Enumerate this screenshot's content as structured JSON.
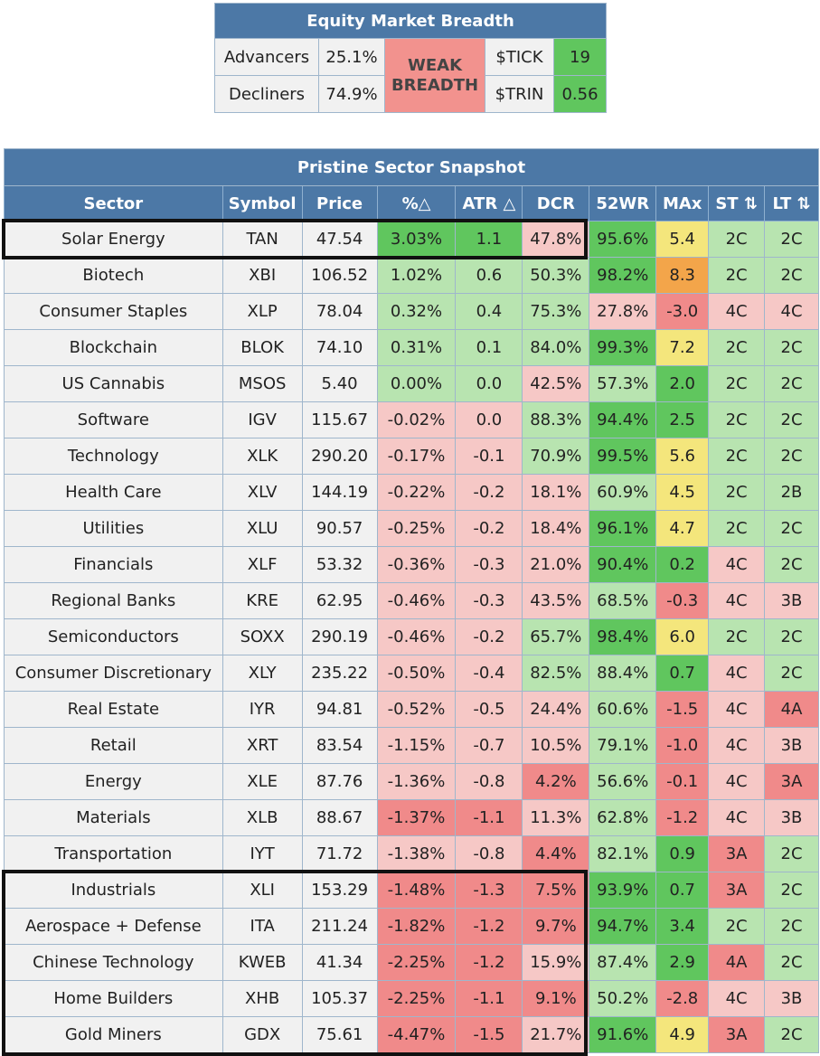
{
  "breadth": {
    "title": "Equity Market Breadth",
    "advancers_label": "Advancers",
    "advancers_value": "25.1%",
    "decliners_label": "Decliners",
    "decliners_value": "74.9%",
    "signal_line1": "WEAK",
    "signal_line2": "BREADTH",
    "tick_label": "$TICK",
    "tick_value": "19",
    "trin_label": "$TRIN",
    "trin_value": "0.56"
  },
  "snapshot": {
    "title": "Pristine Sector Snapshot",
    "columns": [
      "Sector",
      "Symbol",
      "Price",
      "%△",
      "ATR △",
      "DCR",
      "52WR",
      "MAx",
      "ST ⇅",
      "LT ⇅"
    ],
    "colors": {
      "green_dark": "#60c65e",
      "green_light": "#b8e4b0",
      "red_dark": "#f08a8a",
      "red_light": "#f6c8c6",
      "yellow": "#f4e67c",
      "orange": "#f3a54a",
      "grey": "#f1f1f1"
    },
    "rows": [
      {
        "sector": "Solar Energy",
        "symbol": "TAN",
        "price": "47.54",
        "pct": "3.03%",
        "pct_c": "green_dark",
        "atr": "1.1",
        "atr_c": "green_dark",
        "dcr": "47.8%",
        "dcr_c": "red_light",
        "wr": "95.6%",
        "wr_c": "green_dark",
        "max": "5.4",
        "max_c": "yellow",
        "st": "2C",
        "st_c": "green_light",
        "lt": "2C",
        "lt_c": "green_light"
      },
      {
        "sector": "Biotech",
        "symbol": "XBI",
        "price": "106.52",
        "pct": "1.02%",
        "pct_c": "green_light",
        "atr": "0.6",
        "atr_c": "green_light",
        "dcr": "50.3%",
        "dcr_c": "green_light",
        "wr": "98.2%",
        "wr_c": "green_dark",
        "max": "8.3",
        "max_c": "orange",
        "st": "2C",
        "st_c": "green_light",
        "lt": "2C",
        "lt_c": "green_light"
      },
      {
        "sector": "Consumer Staples",
        "symbol": "XLP",
        "price": "78.04",
        "pct": "0.32%",
        "pct_c": "green_light",
        "atr": "0.4",
        "atr_c": "green_light",
        "dcr": "75.3%",
        "dcr_c": "green_light",
        "wr": "27.8%",
        "wr_c": "red_light",
        "max": "-3.0",
        "max_c": "red_dark",
        "st": "4C",
        "st_c": "red_light",
        "lt": "4C",
        "lt_c": "red_light"
      },
      {
        "sector": "Blockchain",
        "symbol": "BLOK",
        "price": "74.10",
        "pct": "0.31%",
        "pct_c": "green_light",
        "atr": "0.1",
        "atr_c": "green_light",
        "dcr": "84.0%",
        "dcr_c": "green_light",
        "wr": "99.3%",
        "wr_c": "green_dark",
        "max": "7.2",
        "max_c": "yellow",
        "st": "2C",
        "st_c": "green_light",
        "lt": "2C",
        "lt_c": "green_light"
      },
      {
        "sector": "US Cannabis",
        "symbol": "MSOS",
        "price": "5.40",
        "pct": "0.00%",
        "pct_c": "green_light",
        "atr": "0.0",
        "atr_c": "green_light",
        "dcr": "42.5%",
        "dcr_c": "red_light",
        "wr": "57.3%",
        "wr_c": "green_light",
        "max": "2.0",
        "max_c": "green_dark",
        "st": "2C",
        "st_c": "green_light",
        "lt": "2C",
        "lt_c": "green_light"
      },
      {
        "sector": "Software",
        "symbol": "IGV",
        "price": "115.67",
        "pct": "-0.02%",
        "pct_c": "red_light",
        "atr": "0.0",
        "atr_c": "red_light",
        "dcr": "88.3%",
        "dcr_c": "green_light",
        "wr": "94.4%",
        "wr_c": "green_dark",
        "max": "2.5",
        "max_c": "green_dark",
        "st": "2C",
        "st_c": "green_light",
        "lt": "2C",
        "lt_c": "green_light"
      },
      {
        "sector": "Technology",
        "symbol": "XLK",
        "price": "290.20",
        "pct": "-0.17%",
        "pct_c": "red_light",
        "atr": "-0.1",
        "atr_c": "red_light",
        "dcr": "70.9%",
        "dcr_c": "green_light",
        "wr": "99.5%",
        "wr_c": "green_dark",
        "max": "5.6",
        "max_c": "yellow",
        "st": "2C",
        "st_c": "green_light",
        "lt": "2C",
        "lt_c": "green_light"
      },
      {
        "sector": "Health Care",
        "symbol": "XLV",
        "price": "144.19",
        "pct": "-0.22%",
        "pct_c": "red_light",
        "atr": "-0.2",
        "atr_c": "red_light",
        "dcr": "18.1%",
        "dcr_c": "red_light",
        "wr": "60.9%",
        "wr_c": "green_light",
        "max": "4.5",
        "max_c": "yellow",
        "st": "2C",
        "st_c": "green_light",
        "lt": "2B",
        "lt_c": "green_light"
      },
      {
        "sector": "Utilities",
        "symbol": "XLU",
        "price": "90.57",
        "pct": "-0.25%",
        "pct_c": "red_light",
        "atr": "-0.2",
        "atr_c": "red_light",
        "dcr": "18.4%",
        "dcr_c": "red_light",
        "wr": "96.1%",
        "wr_c": "green_dark",
        "max": "4.7",
        "max_c": "yellow",
        "st": "2C",
        "st_c": "green_light",
        "lt": "2C",
        "lt_c": "green_light"
      },
      {
        "sector": "Financials",
        "symbol": "XLF",
        "price": "53.32",
        "pct": "-0.36%",
        "pct_c": "red_light",
        "atr": "-0.3",
        "atr_c": "red_light",
        "dcr": "21.0%",
        "dcr_c": "red_light",
        "wr": "90.4%",
        "wr_c": "green_dark",
        "max": "0.2",
        "max_c": "green_dark",
        "st": "4C",
        "st_c": "red_light",
        "lt": "2C",
        "lt_c": "green_light"
      },
      {
        "sector": "Regional Banks",
        "symbol": "KRE",
        "price": "62.95",
        "pct": "-0.46%",
        "pct_c": "red_light",
        "atr": "-0.3",
        "atr_c": "red_light",
        "dcr": "43.5%",
        "dcr_c": "red_light",
        "wr": "68.5%",
        "wr_c": "green_light",
        "max": "-0.3",
        "max_c": "red_dark",
        "st": "4C",
        "st_c": "red_light",
        "lt": "3B",
        "lt_c": "red_light"
      },
      {
        "sector": "Semiconductors",
        "symbol": "SOXX",
        "price": "290.19",
        "pct": "-0.46%",
        "pct_c": "red_light",
        "atr": "-0.2",
        "atr_c": "red_light",
        "dcr": "65.7%",
        "dcr_c": "green_light",
        "wr": "98.4%",
        "wr_c": "green_dark",
        "max": "6.0",
        "max_c": "yellow",
        "st": "2C",
        "st_c": "green_light",
        "lt": "2C",
        "lt_c": "green_light"
      },
      {
        "sector": "Consumer Discretionary",
        "symbol": "XLY",
        "price": "235.22",
        "pct": "-0.50%",
        "pct_c": "red_light",
        "atr": "-0.4",
        "atr_c": "red_light",
        "dcr": "82.5%",
        "dcr_c": "green_light",
        "wr": "88.4%",
        "wr_c": "green_light",
        "max": "0.7",
        "max_c": "green_dark",
        "st": "4C",
        "st_c": "red_light",
        "lt": "2C",
        "lt_c": "green_light"
      },
      {
        "sector": "Real Estate",
        "symbol": "IYR",
        "price": "94.81",
        "pct": "-0.52%",
        "pct_c": "red_light",
        "atr": "-0.5",
        "atr_c": "red_light",
        "dcr": "24.4%",
        "dcr_c": "red_light",
        "wr": "60.6%",
        "wr_c": "green_light",
        "max": "-1.5",
        "max_c": "red_dark",
        "st": "4C",
        "st_c": "red_light",
        "lt": "4A",
        "lt_c": "red_dark"
      },
      {
        "sector": "Retail",
        "symbol": "XRT",
        "price": "83.54",
        "pct": "-1.15%",
        "pct_c": "red_light",
        "atr": "-0.7",
        "atr_c": "red_light",
        "dcr": "10.5%",
        "dcr_c": "red_light",
        "wr": "79.1%",
        "wr_c": "green_light",
        "max": "-1.0",
        "max_c": "red_dark",
        "st": "4C",
        "st_c": "red_light",
        "lt": "3B",
        "lt_c": "red_light"
      },
      {
        "sector": "Energy",
        "symbol": "XLE",
        "price": "87.76",
        "pct": "-1.36%",
        "pct_c": "red_light",
        "atr": "-0.8",
        "atr_c": "red_light",
        "dcr": "4.2%",
        "dcr_c": "red_dark",
        "wr": "56.6%",
        "wr_c": "green_light",
        "max": "-0.1",
        "max_c": "red_dark",
        "st": "4C",
        "st_c": "red_light",
        "lt": "3A",
        "lt_c": "red_dark"
      },
      {
        "sector": "Materials",
        "symbol": "XLB",
        "price": "88.67",
        "pct": "-1.37%",
        "pct_c": "red_dark",
        "atr": "-1.1",
        "atr_c": "red_dark",
        "dcr": "11.3%",
        "dcr_c": "red_light",
        "wr": "62.8%",
        "wr_c": "green_light",
        "max": "-1.2",
        "max_c": "red_dark",
        "st": "4C",
        "st_c": "red_light",
        "lt": "3B",
        "lt_c": "red_light"
      },
      {
        "sector": "Transportation",
        "symbol": "IYT",
        "price": "71.72",
        "pct": "-1.38%",
        "pct_c": "red_light",
        "atr": "-0.8",
        "atr_c": "red_light",
        "dcr": "4.4%",
        "dcr_c": "red_dark",
        "wr": "82.1%",
        "wr_c": "green_light",
        "max": "0.9",
        "max_c": "green_dark",
        "st": "3A",
        "st_c": "red_dark",
        "lt": "2C",
        "lt_c": "green_light"
      },
      {
        "sector": "Industrials",
        "symbol": "XLI",
        "price": "153.29",
        "pct": "-1.48%",
        "pct_c": "red_dark",
        "atr": "-1.3",
        "atr_c": "red_dark",
        "dcr": "7.5%",
        "dcr_c": "red_dark",
        "wr": "93.9%",
        "wr_c": "green_dark",
        "max": "0.7",
        "max_c": "green_dark",
        "st": "3A",
        "st_c": "red_dark",
        "lt": "2C",
        "lt_c": "green_light"
      },
      {
        "sector": "Aerospace + Defense",
        "symbol": "ITA",
        "price": "211.24",
        "pct": "-1.82%",
        "pct_c": "red_dark",
        "atr": "-1.2",
        "atr_c": "red_dark",
        "dcr": "9.7%",
        "dcr_c": "red_dark",
        "wr": "94.7%",
        "wr_c": "green_dark",
        "max": "3.4",
        "max_c": "green_dark",
        "st": "2C",
        "st_c": "green_light",
        "lt": "2C",
        "lt_c": "green_light"
      },
      {
        "sector": "Chinese Technology",
        "symbol": "KWEB",
        "price": "41.34",
        "pct": "-2.25%",
        "pct_c": "red_dark",
        "atr": "-1.2",
        "atr_c": "red_dark",
        "dcr": "15.9%",
        "dcr_c": "red_light",
        "wr": "87.4%",
        "wr_c": "green_light",
        "max": "2.9",
        "max_c": "green_dark",
        "st": "4A",
        "st_c": "red_dark",
        "lt": "2C",
        "lt_c": "green_light"
      },
      {
        "sector": "Home Builders",
        "symbol": "XHB",
        "price": "105.37",
        "pct": "-2.25%",
        "pct_c": "red_dark",
        "atr": "-1.1",
        "atr_c": "red_dark",
        "dcr": "9.1%",
        "dcr_c": "red_dark",
        "wr": "50.2%",
        "wr_c": "green_light",
        "max": "-2.8",
        "max_c": "red_dark",
        "st": "4C",
        "st_c": "red_light",
        "lt": "3B",
        "lt_c": "red_light"
      },
      {
        "sector": "Gold Miners",
        "symbol": "GDX",
        "price": "75.61",
        "pct": "-4.47%",
        "pct_c": "red_dark",
        "atr": "-1.5",
        "atr_c": "red_dark",
        "dcr": "21.7%",
        "dcr_c": "red_light",
        "wr": "91.6%",
        "wr_c": "green_dark",
        "max": "4.9",
        "max_c": "yellow",
        "st": "3A",
        "st_c": "red_dark",
        "lt": "2C",
        "lt_c": "green_light"
      }
    ]
  }
}
